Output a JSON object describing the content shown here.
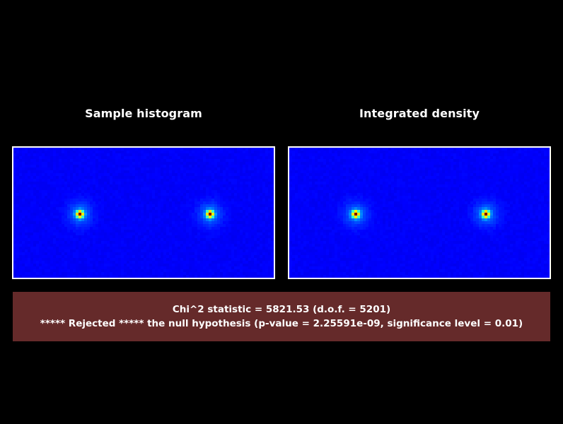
{
  "panels": {
    "left_title": "Sample histogram",
    "right_title": "Integrated density"
  },
  "result": {
    "chi2_line": "Chi^2 statistic = 5821.53 (d.o.f. = 5201)",
    "decision_line": "***** Rejected ***** the null hypothesis (p-value = 2.25591e-09, significance level = 0.01)"
  },
  "colors": {
    "background": "#000000",
    "plot_border": "#ffffff",
    "result_box": "#652a2a",
    "text": "#ffffff",
    "colormap_low": "#0a1aff",
    "colormap_high": "#ff2000"
  }
}
